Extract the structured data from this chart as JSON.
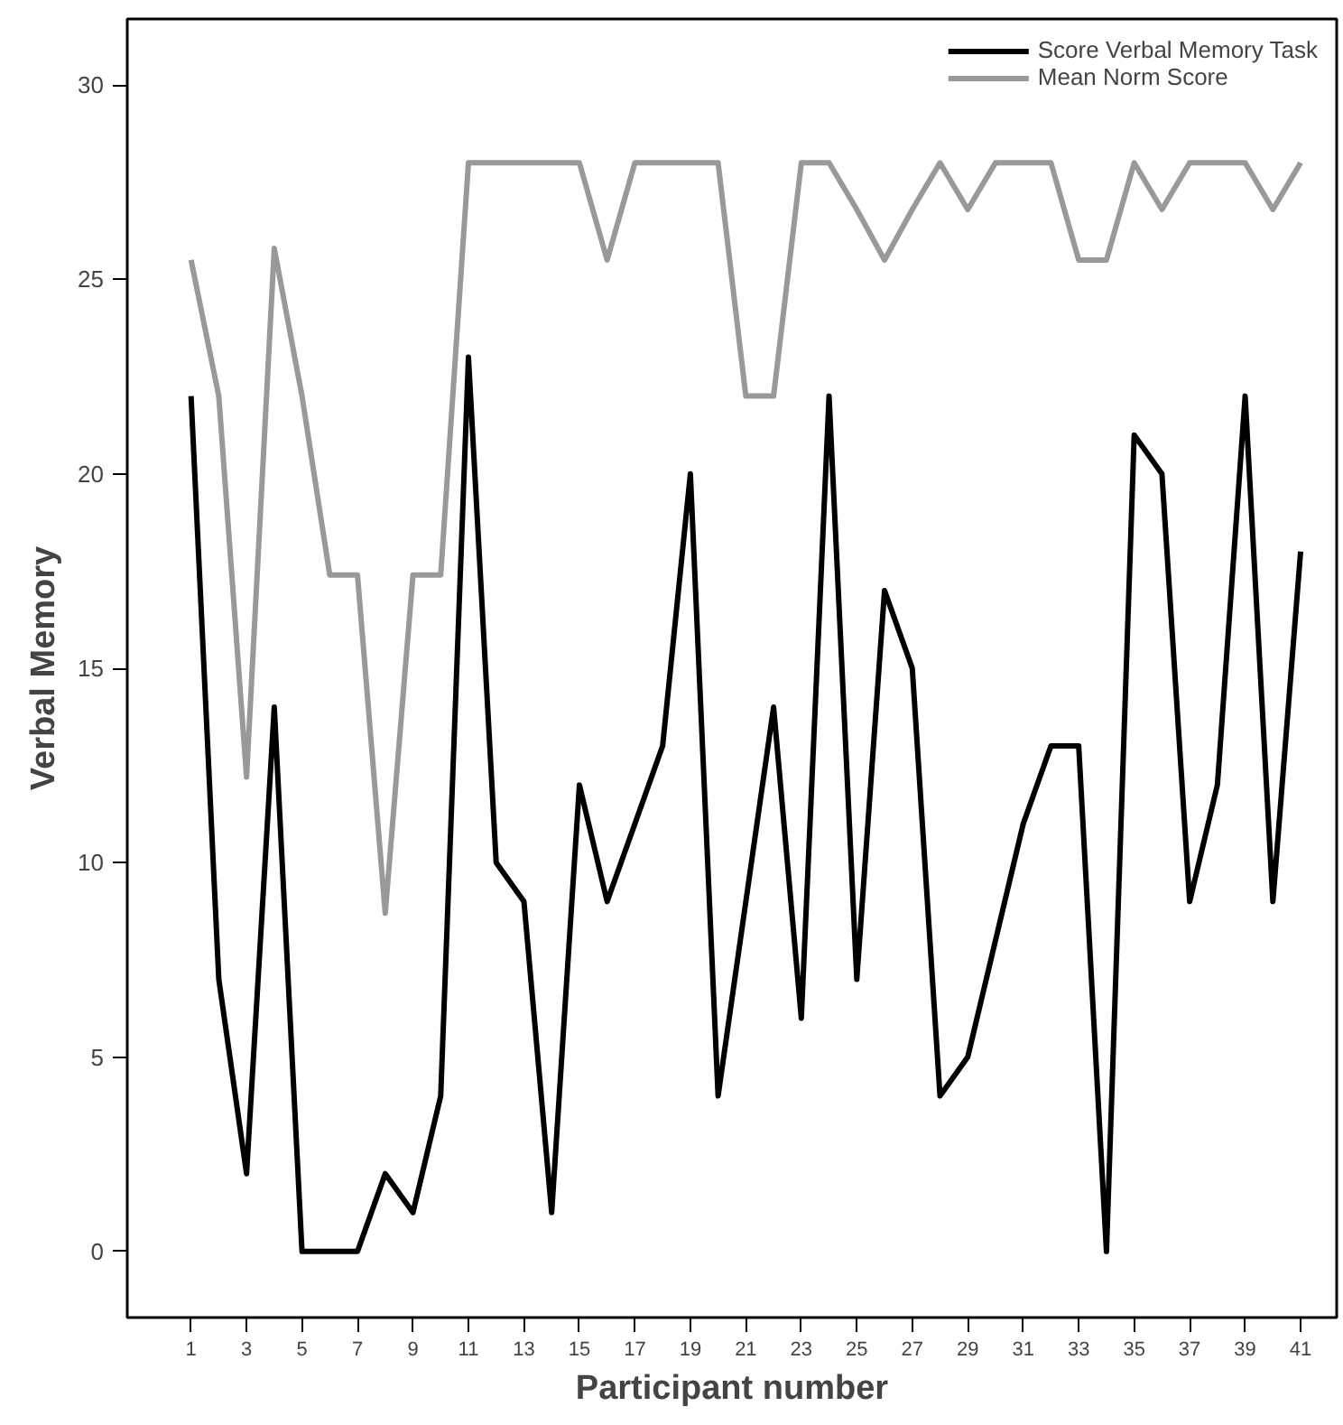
{
  "chart_data": {
    "type": "line",
    "xlabel": "Participant number",
    "ylabel": "Verbal Memory",
    "x": [
      1,
      2,
      3,
      4,
      5,
      6,
      7,
      8,
      9,
      10,
      11,
      12,
      13,
      14,
      15,
      16,
      17,
      18,
      19,
      20,
      21,
      22,
      23,
      24,
      25,
      26,
      27,
      28,
      29,
      30,
      31,
      32,
      33,
      34,
      35,
      36,
      37,
      38,
      39,
      40,
      41
    ],
    "series": [
      {
        "name": "Score Verbal Memory Task",
        "color": "#000000",
        "values": [
          22,
          7,
          2,
          14,
          0,
          0,
          0,
          2,
          1,
          4,
          23,
          10,
          9,
          1,
          12,
          9,
          11,
          13,
          20,
          4,
          9,
          14,
          6,
          22,
          7,
          17,
          15,
          4,
          5,
          8,
          11,
          13,
          13,
          0,
          21,
          20,
          9,
          12,
          22,
          9,
          18
        ]
      },
      {
        "name": "Mean Norm Score",
        "color": "#999999",
        "values": [
          25.5,
          22,
          12.2,
          25.8,
          22,
          17.4,
          17.4,
          8.7,
          17.4,
          17.4,
          28,
          28,
          28,
          28,
          28,
          25.5,
          28,
          28,
          28,
          28,
          22,
          22,
          28,
          28,
          26.8,
          25.5,
          26.8,
          28,
          26.8,
          28,
          28,
          28,
          25.5,
          25.5,
          28,
          26.8,
          28,
          28,
          28,
          26.8,
          28
        ]
      }
    ],
    "xlim": [
      -1.3,
      42.3
    ],
    "ylim": [
      -1.7,
      31.7
    ],
    "xticks": [
      1,
      3,
      5,
      7,
      9,
      11,
      13,
      15,
      17,
      19,
      21,
      23,
      25,
      27,
      29,
      31,
      33,
      35,
      37,
      39,
      41
    ],
    "yticks": [
      0,
      5,
      10,
      15,
      20,
      25,
      30
    ],
    "grid": false,
    "legend": "top right",
    "marker": "none",
    "line_style": "solid"
  }
}
